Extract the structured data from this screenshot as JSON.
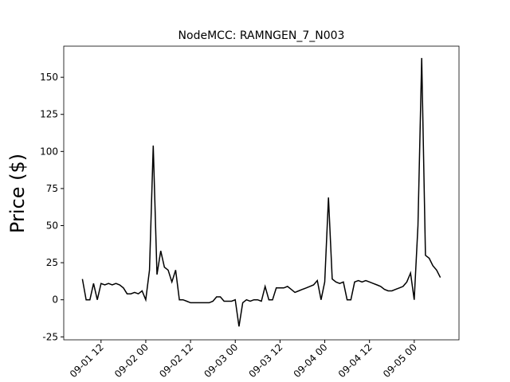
{
  "chart_data": {
    "type": "line",
    "title": "NodeMCC: RAMNGEN_7_N003",
    "y_label": "Price ($)",
    "x": [
      "09-01 07",
      "09-01 08",
      "09-01 09",
      "09-01 10",
      "09-01 11",
      "09-01 12",
      "09-01 13",
      "09-01 14",
      "09-01 15",
      "09-01 16",
      "09-01 17",
      "09-01 18",
      "09-01 19",
      "09-01 20",
      "09-01 21",
      "09-01 22",
      "09-01 23",
      "09-02 00",
      "09-02 01",
      "09-02 02",
      "09-02 03",
      "09-02 04",
      "09-02 05",
      "09-02 06",
      "09-02 07",
      "09-02 08",
      "09-02 09",
      "09-02 10",
      "09-02 11",
      "09-02 12",
      "09-02 13",
      "09-02 14",
      "09-02 15",
      "09-02 16",
      "09-02 17",
      "09-02 18",
      "09-02 19",
      "09-02 20",
      "09-02 21",
      "09-02 22",
      "09-02 23",
      "09-03 00",
      "09-03 01",
      "09-03 02",
      "09-03 03",
      "09-03 04",
      "09-03 05",
      "09-03 06",
      "09-03 07",
      "09-03 08",
      "09-03 09",
      "09-03 10",
      "09-03 11",
      "09-03 12",
      "09-03 13",
      "09-03 14",
      "09-03 15",
      "09-03 16",
      "09-03 17",
      "09-03 18",
      "09-03 19",
      "09-03 20",
      "09-03 21",
      "09-03 22",
      "09-03 23",
      "09-04 00",
      "09-04 01",
      "09-04 02",
      "09-04 03",
      "09-04 04",
      "09-04 05",
      "09-04 06",
      "09-04 07",
      "09-04 08",
      "09-04 09",
      "09-04 10",
      "09-04 11",
      "09-04 12",
      "09-04 13",
      "09-04 14",
      "09-04 15",
      "09-04 16",
      "09-04 17",
      "09-04 18",
      "09-04 19",
      "09-04 20",
      "09-04 21",
      "09-04 22",
      "09-04 23",
      "09-05 00",
      "09-05 01",
      "09-05 02",
      "09-05 03",
      "09-05 04",
      "09-05 05",
      "09-05 06",
      "09-05 07"
    ],
    "series": [
      {
        "name": "RAMNGEN_7_N003",
        "color": "#000000",
        "values": [
          14,
          0,
          0,
          11,
          0,
          11,
          10,
          11,
          10,
          11,
          10,
          8,
          4,
          4,
          5,
          4,
          6,
          0,
          20,
          104,
          17,
          33,
          22,
          20,
          12,
          20,
          0,
          0,
          -1,
          -2,
          -2,
          -2,
          -2,
          -2,
          -2,
          -1,
          2,
          2,
          -1,
          -1,
          -1,
          0,
          -18,
          -2,
          0,
          -1,
          0,
          0,
          -1,
          9,
          0,
          0,
          8,
          8,
          8,
          9,
          7,
          5,
          6,
          7,
          8,
          9,
          10,
          13,
          0,
          12,
          69,
          14,
          12,
          11,
          12,
          0,
          0,
          12,
          13,
          12,
          13,
          12,
          11,
          10,
          9,
          7,
          6,
          6,
          7,
          8,
          9,
          12,
          18,
          0,
          50,
          163,
          30,
          28,
          23,
          20,
          15
        ]
      }
    ],
    "xlim": [
      "09-01 02",
      "09-05 12"
    ],
    "xticks": [
      "09-01 12",
      "09-02 00",
      "09-02 12",
      "09-03 00",
      "09-03 12",
      "09-04 00",
      "09-04 12",
      "09-05 00"
    ],
    "ylim": [
      -27,
      171
    ],
    "yticks": [
      -25,
      0,
      25,
      50,
      75,
      100,
      125,
      150
    ]
  }
}
